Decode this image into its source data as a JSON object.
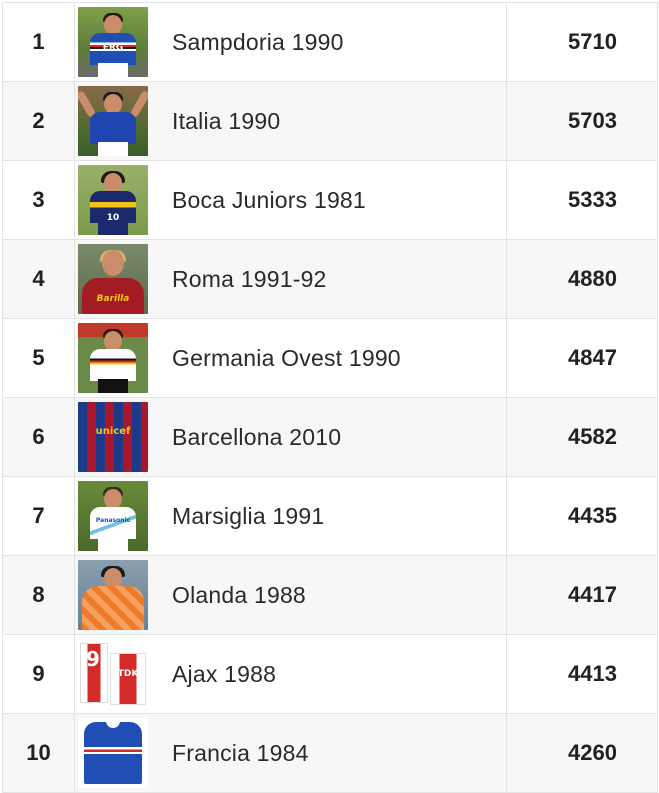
{
  "rows": [
    {
      "rank": "1",
      "team": "Sampdoria 1990",
      "votes": "5710",
      "shirt_text": "ERG",
      "icon": "player-photo"
    },
    {
      "rank": "2",
      "team": "Italia 1990",
      "votes": "5703",
      "shirt_text": "",
      "icon": "player-photo"
    },
    {
      "rank": "3",
      "team": "Boca Juniors 1981",
      "votes": "5333",
      "shirt_text": "10",
      "icon": "player-photo"
    },
    {
      "rank": "4",
      "team": "Roma 1991-92",
      "votes": "4880",
      "shirt_text": "Barilla",
      "icon": "player-photo"
    },
    {
      "rank": "5",
      "team": "Germania Ovest 1990",
      "votes": "4847",
      "shirt_text": "",
      "icon": "player-photo"
    },
    {
      "rank": "6",
      "team": "Barcellona 2010",
      "votes": "4582",
      "shirt_text": "unicef",
      "icon": "jersey-photo"
    },
    {
      "rank": "7",
      "team": "Marsiglia 1991",
      "votes": "4435",
      "shirt_text": "Panasonic",
      "icon": "player-photo"
    },
    {
      "rank": "8",
      "team": "Olanda 1988",
      "votes": "4417",
      "shirt_text": "",
      "icon": "player-photo"
    },
    {
      "rank": "9",
      "team": "Ajax 1988",
      "votes": "4413",
      "shirt_text": "TDK",
      "icon": "jersey-photo"
    },
    {
      "rank": "10",
      "team": "Francia 1984",
      "votes": "4260",
      "shirt_text": "",
      "icon": "jersey-photo"
    }
  ],
  "colors": {
    "border": "#e3e3e3",
    "row_alt": "#f7f7f7",
    "text": "#212121"
  }
}
